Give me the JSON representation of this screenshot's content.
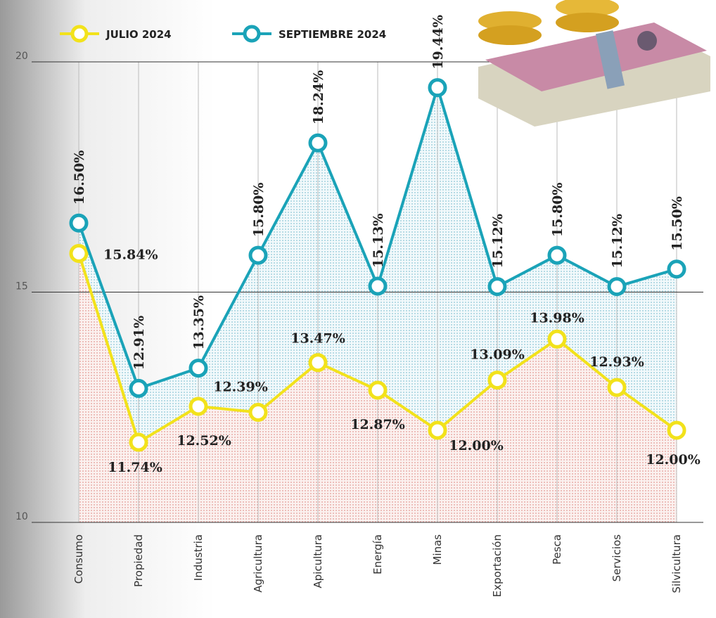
{
  "chart_data": {
    "type": "line",
    "categories": [
      "Consumo",
      "Propiedad",
      "Industria",
      "Agricultura",
      "Apicultura",
      "Energía",
      "Minas",
      "Exportación",
      "Pesca",
      "Servicios",
      "Silvicultura"
    ],
    "series": [
      {
        "name": "JULIO 2024",
        "color": "#f2e21b",
        "values": [
          15.84,
          11.74,
          12.52,
          12.39,
          13.47,
          12.87,
          12.0,
          13.09,
          13.98,
          12.93,
          12.0
        ],
        "value_labels": [
          "15.84%",
          "11.74%",
          "12.52%",
          "12.39%",
          "13.47%",
          "12.87%",
          "12.00%",
          "13.09%",
          "13.98%",
          "12.93%",
          "12.00%"
        ]
      },
      {
        "name": "SEPTIEMBRE 2024",
        "color": "#1aa3b8",
        "values": [
          16.5,
          12.91,
          13.35,
          15.8,
          18.24,
          15.13,
          19.44,
          15.12,
          15.8,
          15.12,
          15.5
        ],
        "value_labels": [
          "16.50%",
          "12.91%",
          "13.35%",
          "15.80%",
          "18.24%",
          "15.13%",
          "19.44%",
          "15.12%",
          "15.80%",
          "15.12%",
          "15.50%"
        ]
      }
    ],
    "ylim": [
      10,
      20
    ],
    "yticks": [
      10,
      15,
      20
    ],
    "grid": true
  }
}
